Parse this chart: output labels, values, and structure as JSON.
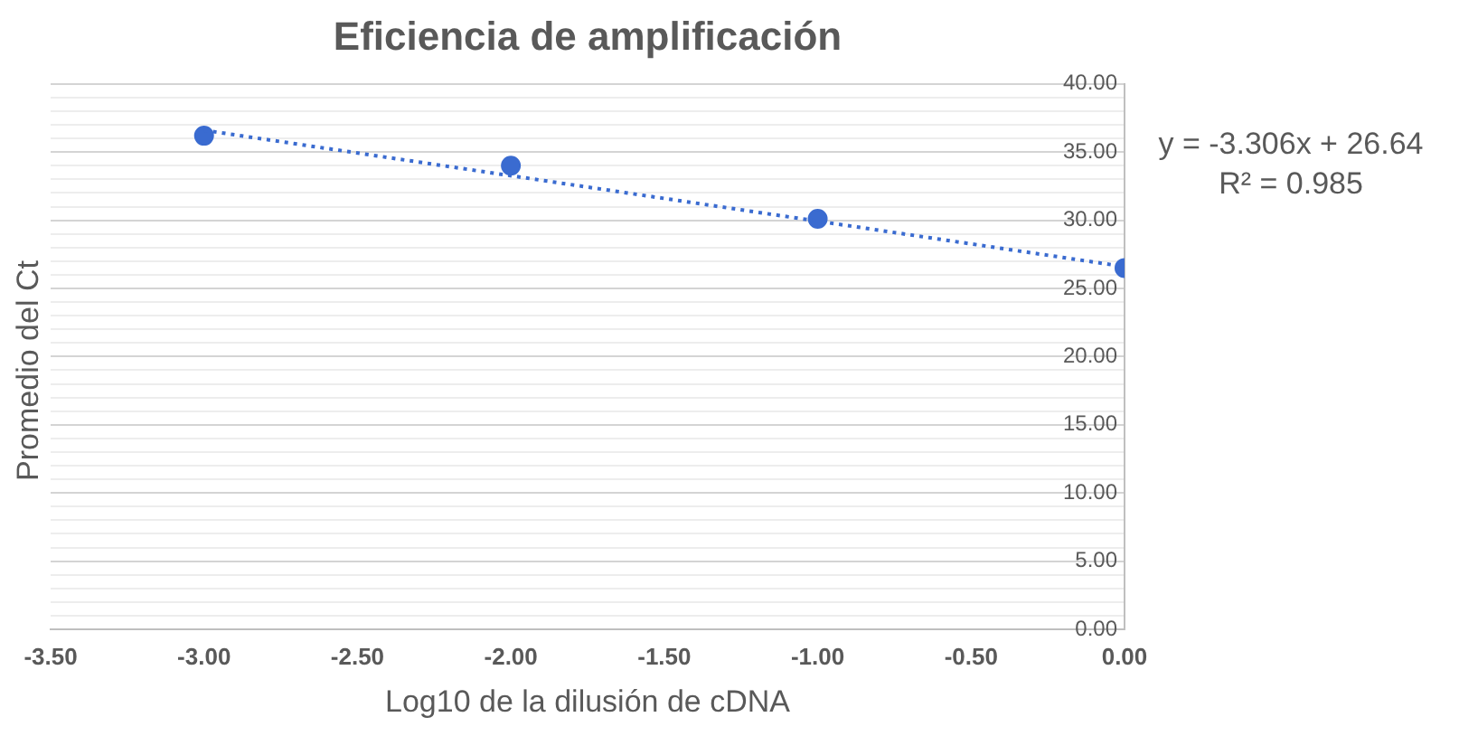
{
  "chart_data": {
    "type": "scatter",
    "title": "Eficiencia de amplificación",
    "xlabel": "Log10 de la dilusión de cDNA",
    "ylabel": "Promedio del Ct",
    "x": [
      -3,
      -2,
      -1,
      0
    ],
    "series": [
      {
        "type": "scatter",
        "color": "#3a6bd0",
        "values": [
          36.2,
          34.0,
          30.1,
          26.5
        ],
        "marker": "circle"
      },
      {
        "type": "line",
        "color": "#3a6bd0",
        "x": [
          -3,
          0
        ],
        "values": [
          36.6,
          26.6
        ],
        "line_style": "dotted",
        "marker": "none"
      }
    ],
    "xlim": [
      -3.5,
      0
    ],
    "xticks": [
      {
        "value": -3.5,
        "label": "-3.50"
      },
      {
        "value": -3,
        "label": "-3.00"
      },
      {
        "value": -2.5,
        "label": "-2.50"
      },
      {
        "value": -2,
        "label": "-2.00"
      },
      {
        "value": -1.5,
        "label": "-1.50"
      },
      {
        "value": -1,
        "label": "-1.00"
      },
      {
        "value": -0.5,
        "label": "-0.50"
      },
      {
        "value": 0,
        "label": "0.00"
      }
    ],
    "ylim": [
      0,
      40
    ],
    "yticks": [
      {
        "value": 0,
        "label": "0.00"
      },
      {
        "value": 1,
        "label": null
      },
      {
        "value": 2,
        "label": null
      },
      {
        "value": 3,
        "label": null
      },
      {
        "value": 4,
        "label": null
      },
      {
        "value": 5,
        "label": "5.00"
      },
      {
        "value": 6,
        "label": null
      },
      {
        "value": 7,
        "label": null
      },
      {
        "value": 8,
        "label": null
      },
      {
        "value": 9,
        "label": null
      },
      {
        "value": 10,
        "label": "10.00"
      },
      {
        "value": 11,
        "label": null
      },
      {
        "value": 12,
        "label": null
      },
      {
        "value": 13,
        "label": null
      },
      {
        "value": 14,
        "label": null
      },
      {
        "value": 15,
        "label": "15.00"
      },
      {
        "value": 16,
        "label": null
      },
      {
        "value": 17,
        "label": null
      },
      {
        "value": 18,
        "label": null
      },
      {
        "value": 19,
        "label": null
      },
      {
        "value": 20,
        "label": "20.00"
      },
      {
        "value": 21,
        "label": null
      },
      {
        "value": 22,
        "label": null
      },
      {
        "value": 23,
        "label": null
      },
      {
        "value": 24,
        "label": null
      },
      {
        "value": 25,
        "label": "25.00"
      },
      {
        "value": 26,
        "label": null
      },
      {
        "value": 27,
        "label": null
      },
      {
        "value": 28,
        "label": null
      },
      {
        "value": 29,
        "label": null
      },
      {
        "value": 30,
        "label": "30.00"
      },
      {
        "value": 31,
        "label": null
      },
      {
        "value": 32,
        "label": null
      },
      {
        "value": 33,
        "label": null
      },
      {
        "value": 34,
        "label": null
      },
      {
        "value": 35,
        "label": "35.00"
      },
      {
        "value": 36,
        "label": null
      },
      {
        "value": 37,
        "label": null
      },
      {
        "value": 38,
        "label": null
      },
      {
        "value": 39,
        "label": null
      },
      {
        "value": 40,
        "label": "40.00"
      }
    ],
    "grid": "y",
    "legend": false,
    "annotations": [
      "y = -3.306x + 26.64",
      "R² = 0.985"
    ]
  }
}
